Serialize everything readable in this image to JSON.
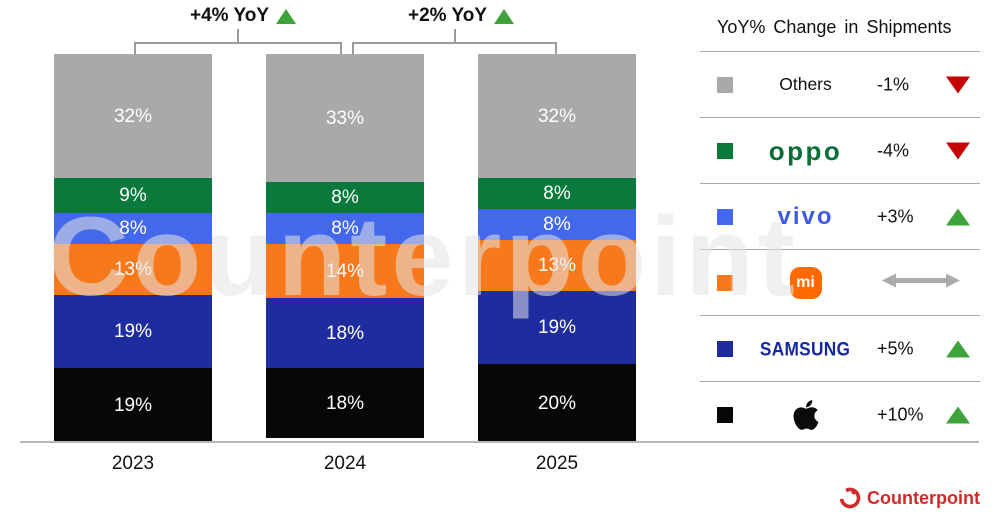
{
  "watermark": "Counterpoint",
  "footer": {
    "brand": "Counterpoint"
  },
  "chart_data": {
    "type": "bar",
    "subtype": "stacked-percent",
    "title": "",
    "categories": [
      "2023",
      "2024",
      "2025"
    ],
    "unit": "%",
    "ylim": [
      0,
      100
    ],
    "grid": false,
    "series": [
      {
        "name": "Apple",
        "color": "#070707",
        "values": [
          19,
          18,
          20
        ]
      },
      {
        "name": "Samsung",
        "color": "#1e2ca0",
        "values": [
          19,
          18,
          19
        ]
      },
      {
        "name": "Xiaomi",
        "color": "#f8791b",
        "values": [
          13,
          14,
          13
        ]
      },
      {
        "name": "vivo",
        "color": "#4468eb",
        "values": [
          8,
          8,
          8
        ]
      },
      {
        "name": "OPPO",
        "color": "#0a7a3c",
        "values": [
          9,
          8,
          8
        ]
      },
      {
        "name": "Others",
        "color": "#a9a9a9",
        "values": [
          32,
          33,
          32
        ]
      }
    ],
    "annotations": [
      {
        "label": "+4% YoY",
        "trend": "up",
        "between": [
          "2023",
          "2024"
        ]
      },
      {
        "label": "+2% YoY",
        "trend": "up",
        "between": [
          "2024",
          "2025"
        ]
      }
    ]
  },
  "legend": {
    "title": "YoY% Change in Shipments",
    "legend_position": "right",
    "rows": [
      {
        "brand": "Others",
        "label": "Others",
        "swatch": "#a9a9a9",
        "logo_color": "#111111",
        "change": "-1%",
        "trend": "down"
      },
      {
        "brand": "OPPO",
        "label": "oppo",
        "swatch": "#0a7a3c",
        "logo_color": "#0a6e38",
        "change": "-4%",
        "trend": "down"
      },
      {
        "brand": "vivo",
        "label": "vivo",
        "swatch": "#4468eb",
        "logo_color": "#3f5be5",
        "change": "+3%",
        "trend": "up"
      },
      {
        "brand": "Xiaomi",
        "label": "mi",
        "swatch": "#f8791b",
        "logo_color": "#ff6900",
        "change": "",
        "trend": "flat"
      },
      {
        "brand": "Samsung",
        "label": "SAMSUNG",
        "swatch": "#1e2ca0",
        "logo_color": "#17289f",
        "change": "+5%",
        "trend": "up"
      },
      {
        "brand": "Apple",
        "label": "",
        "swatch": "#070707",
        "logo_color": "#0b0b0b",
        "change": "+10%",
        "trend": "up"
      }
    ]
  },
  "colors": {
    "trend_up": "#3fa33b",
    "trend_down": "#c50404",
    "trend_flat": "#ababab",
    "brand_red": "#d02a2a",
    "lines": "#9b9b9b"
  }
}
